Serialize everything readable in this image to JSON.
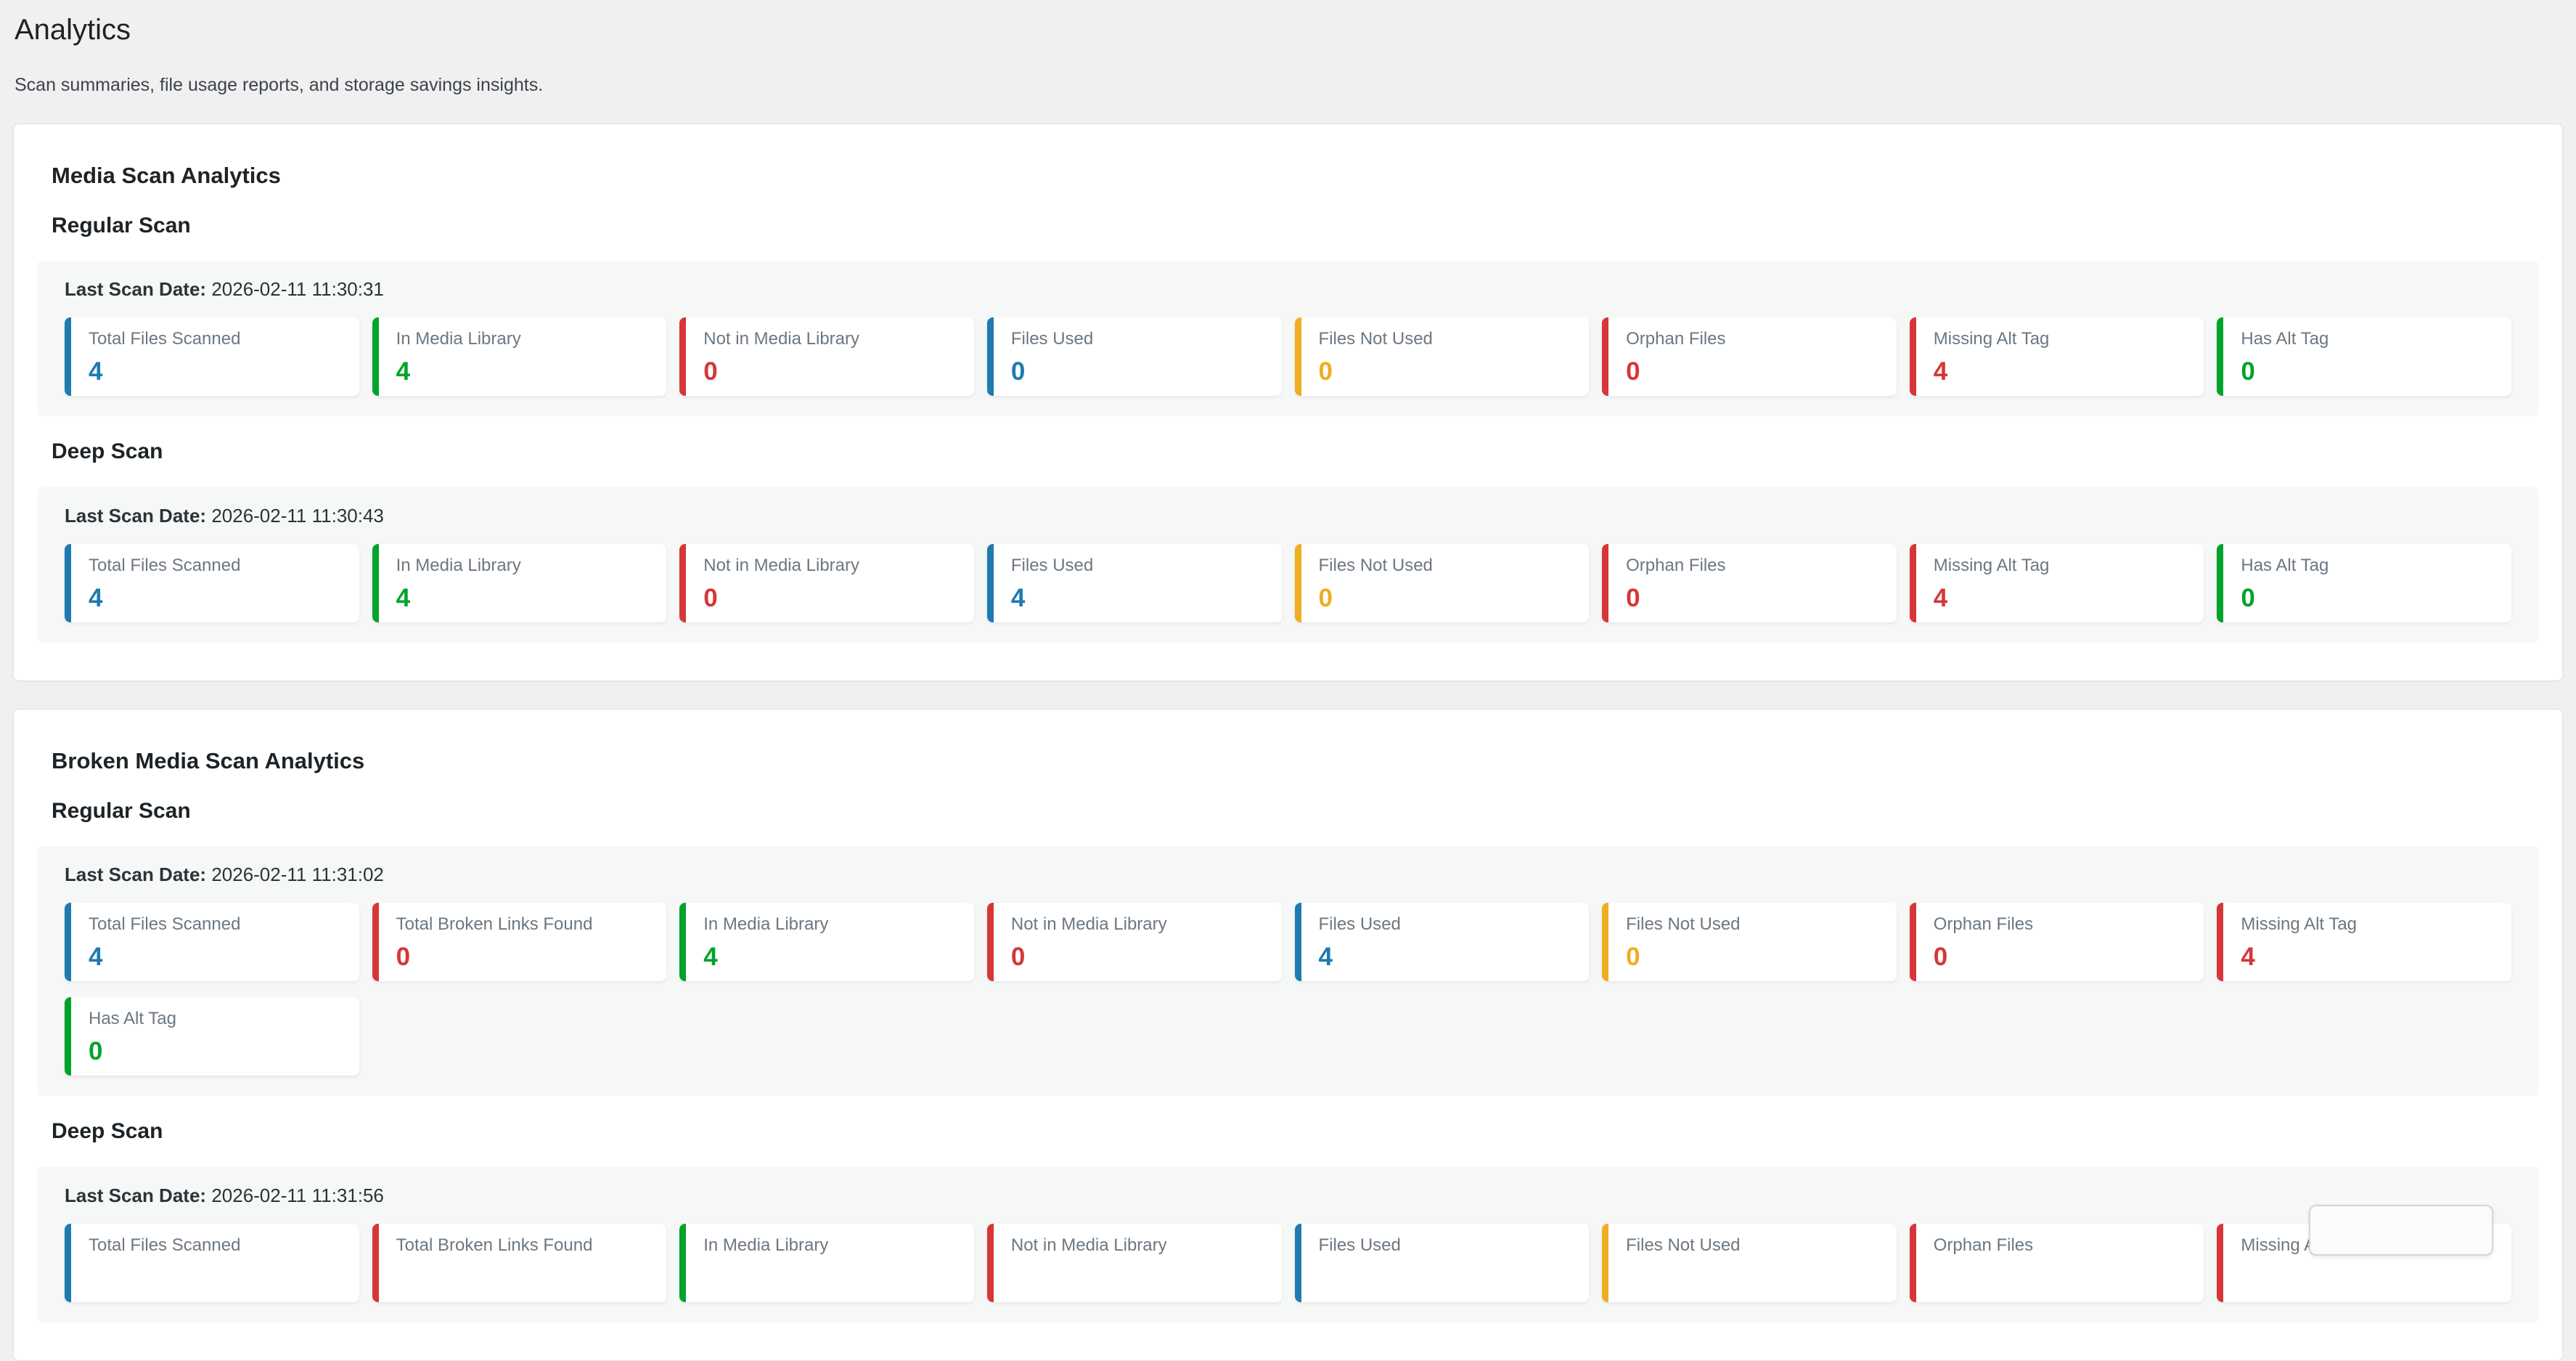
{
  "page": {
    "title": "Analytics",
    "subtitle": "Scan summaries, file usage reports, and storage savings insights."
  },
  "last_scan_label": "Last Scan Date:",
  "colors": {
    "blue": "#1d7bb0",
    "green": "#00a32a",
    "red": "#d63638",
    "yellow": "#efae1f"
  },
  "sections": [
    {
      "title": "Media Scan Analytics",
      "scans": [
        {
          "name": "Regular Scan",
          "last_scan_date": "2026-02-11 11:30:31",
          "stats": [
            {
              "label": "Total Files Scanned",
              "value": "4",
              "color": "blue"
            },
            {
              "label": "In Media Library",
              "value": "4",
              "color": "green"
            },
            {
              "label": "Not in Media Library",
              "value": "0",
              "color": "red"
            },
            {
              "label": "Files Used",
              "value": "0",
              "color": "blue"
            },
            {
              "label": "Files Not Used",
              "value": "0",
              "color": "yellow"
            },
            {
              "label": "Orphan Files",
              "value": "0",
              "color": "red"
            },
            {
              "label": "Missing Alt Tag",
              "value": "4",
              "color": "red"
            },
            {
              "label": "Has Alt Tag",
              "value": "0",
              "color": "green"
            }
          ]
        },
        {
          "name": "Deep Scan",
          "last_scan_date": "2026-02-11 11:30:43",
          "stats": [
            {
              "label": "Total Files Scanned",
              "value": "4",
              "color": "blue"
            },
            {
              "label": "In Media Library",
              "value": "4",
              "color": "green"
            },
            {
              "label": "Not in Media Library",
              "value": "0",
              "color": "red"
            },
            {
              "label": "Files Used",
              "value": "4",
              "color": "blue"
            },
            {
              "label": "Files Not Used",
              "value": "0",
              "color": "yellow"
            },
            {
              "label": "Orphan Files",
              "value": "0",
              "color": "red"
            },
            {
              "label": "Missing Alt Tag",
              "value": "4",
              "color": "red"
            },
            {
              "label": "Has Alt Tag",
              "value": "0",
              "color": "green"
            }
          ]
        }
      ]
    },
    {
      "title": "Broken Media Scan Analytics",
      "scans": [
        {
          "name": "Regular Scan",
          "last_scan_date": "2026-02-11 11:31:02",
          "stats": [
            {
              "label": "Total Files Scanned",
              "value": "4",
              "color": "blue"
            },
            {
              "label": "Total Broken Links Found",
              "value": "0",
              "color": "red"
            },
            {
              "label": "In Media Library",
              "value": "4",
              "color": "green"
            },
            {
              "label": "Not in Media Library",
              "value": "0",
              "color": "red"
            },
            {
              "label": "Files Used",
              "value": "4",
              "color": "blue"
            },
            {
              "label": "Files Not Used",
              "value": "0",
              "color": "yellow"
            },
            {
              "label": "Orphan Files",
              "value": "0",
              "color": "red"
            },
            {
              "label": "Missing Alt Tag",
              "value": "4",
              "color": "red"
            },
            {
              "label": "Has Alt Tag",
              "value": "0",
              "color": "green"
            }
          ]
        },
        {
          "name": "Deep Scan",
          "last_scan_date": "2026-02-11 11:31:56",
          "stats": [
            {
              "label": "Total Files Scanned",
              "value": "",
              "color": "blue"
            },
            {
              "label": "Total Broken Links Found",
              "value": "",
              "color": "red"
            },
            {
              "label": "In Media Library",
              "value": "",
              "color": "green"
            },
            {
              "label": "Not in Media Library",
              "value": "",
              "color": "red"
            },
            {
              "label": "Files Used",
              "value": "",
              "color": "blue"
            },
            {
              "label": "Files Not Used",
              "value": "",
              "color": "yellow"
            },
            {
              "label": "Orphan Files",
              "value": "",
              "color": "red"
            },
            {
              "label": "Missing Alt Tag",
              "value": "",
              "color": "red"
            }
          ]
        }
      ]
    }
  ]
}
